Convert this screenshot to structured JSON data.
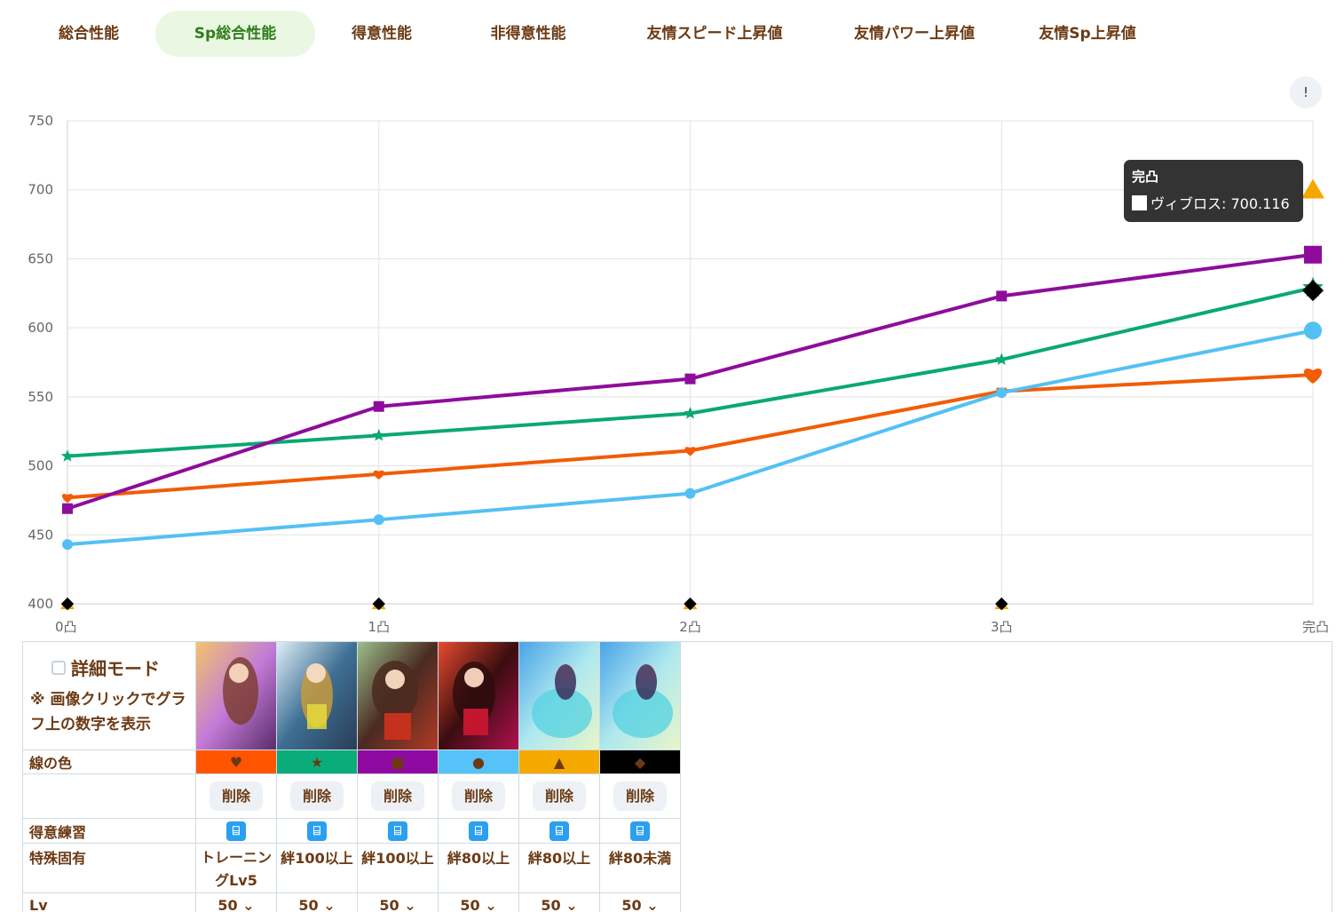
{
  "tabs": [
    {
      "label": "総合性能",
      "active": false
    },
    {
      "label": "Sp総合性能",
      "active": true
    },
    {
      "label": "得意性能",
      "active": false
    },
    {
      "label": "非得意性能",
      "active": false
    },
    {
      "label": "友情スピード上昇値",
      "active": false
    },
    {
      "label": "友情パワー上昇値",
      "active": false
    },
    {
      "label": "友情Sp上昇値",
      "active": false
    }
  ],
  "info_button": "!",
  "tooltip": {
    "title": "完凸",
    "label": "ヴィブロス: 700.116"
  },
  "chart_data": {
    "type": "line",
    "categories": [
      "0凸",
      "1凸",
      "2凸",
      "3凸",
      "完凸"
    ],
    "ylim": [
      400,
      750
    ],
    "yticks": [
      400,
      450,
      500,
      550,
      600,
      650,
      700,
      750
    ],
    "grid": true,
    "series": [
      {
        "marker": "heart",
        "color": "#f25c05",
        "values": [
          477,
          494,
          511,
          554,
          566
        ]
      },
      {
        "marker": "star",
        "color": "#0aa874",
        "values": [
          507,
          522,
          538,
          577,
          629
        ]
      },
      {
        "marker": "square",
        "color": "#8e0c9c",
        "values": [
          469,
          543,
          563,
          623,
          653
        ]
      },
      {
        "marker": "circle",
        "color": "#53c0f5",
        "values": [
          443,
          461,
          480,
          553,
          598
        ]
      },
      {
        "name": "ヴィブロス",
        "marker": "triangle",
        "color": "#f5a800",
        "values": [
          400,
          400,
          400,
          400,
          700.116
        ]
      },
      {
        "marker": "diamond",
        "color": "#000000",
        "values": [
          400,
          400,
          400,
          400,
          627
        ]
      }
    ]
  },
  "panel": {
    "detail_mode_label": "詳細モード",
    "detail_mode_checked": false,
    "note": "※ 画像クリックでグラフ上の数字を表示",
    "row_labels": {
      "line_color": "線の色",
      "specialty_training": "得意練習",
      "unique_effect": "特殊固有",
      "lv": "Lv"
    },
    "cards": [
      {
        "color": "#ff5500",
        "symbol": "♥",
        "delete_label": "削除",
        "unique": "トレーニングLv5",
        "lv": "50 ⌄"
      },
      {
        "color": "#0aad79",
        "symbol": "★",
        "delete_label": "削除",
        "unique": "絆100以上",
        "lv": "50 ⌄"
      },
      {
        "color": "#8f0aa0",
        "symbol": "■",
        "delete_label": "削除",
        "unique": "絆100以上",
        "lv": "50 ⌄"
      },
      {
        "color": "#55c2f8",
        "symbol": "●",
        "delete_label": "削除",
        "unique": "絆80以上",
        "lv": "50 ⌄"
      },
      {
        "color": "#f5a800",
        "symbol": "▲",
        "delete_label": "削除",
        "unique": "絆80以上",
        "lv": "50 ⌄"
      },
      {
        "color": "#000000",
        "symbol": "◆",
        "delete_label": "削除",
        "unique": "絆80未満",
        "lv": "50 ⌄"
      }
    ],
    "training_icon": "⌸"
  }
}
